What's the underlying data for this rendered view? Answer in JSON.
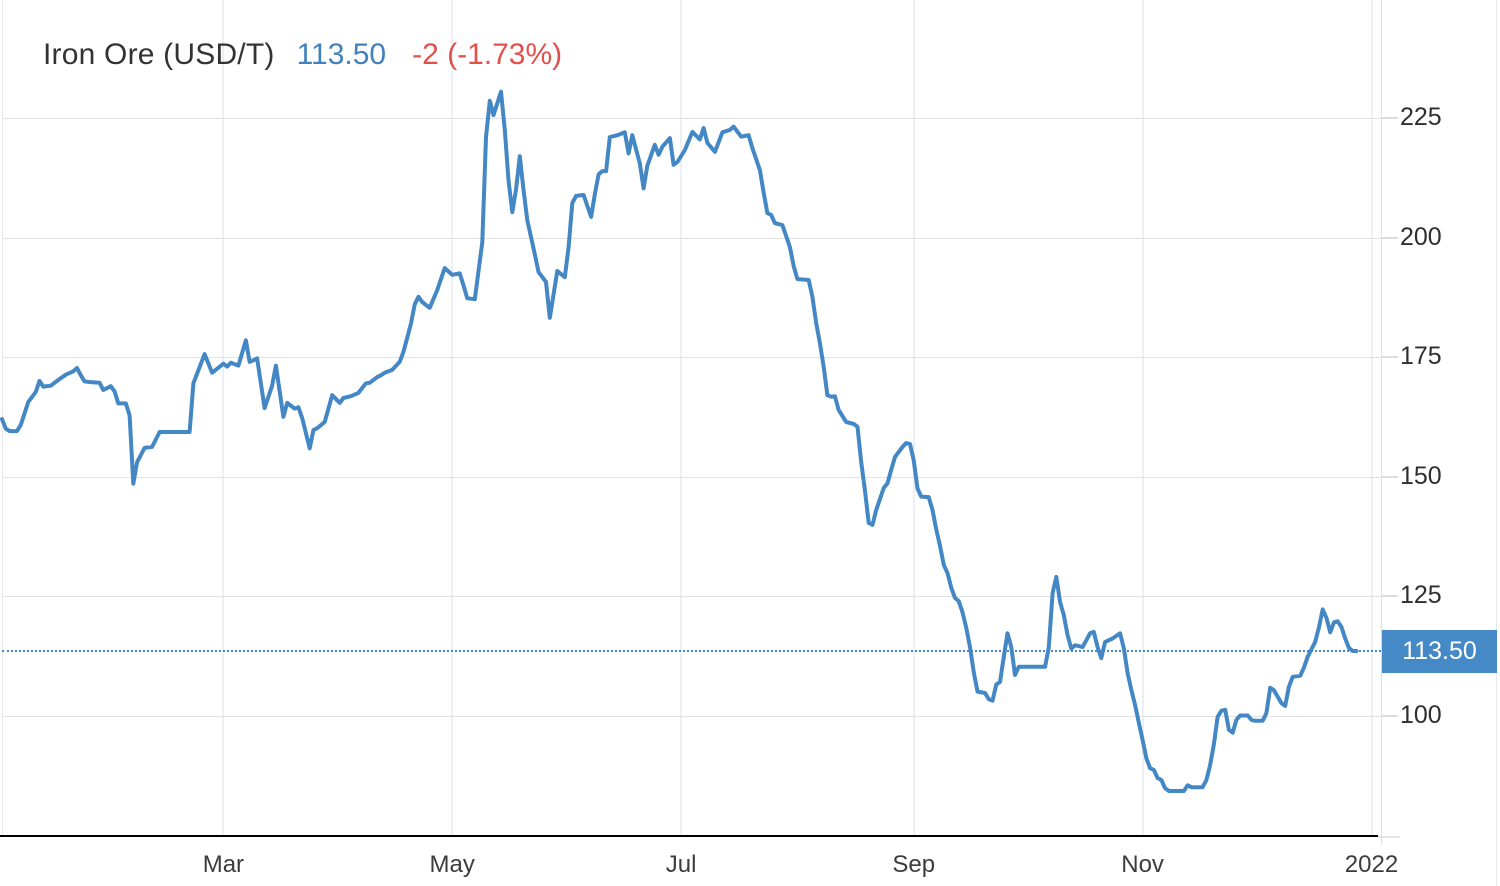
{
  "header": {
    "title": "Iron Ore (USD/T)",
    "last_price": "113.50",
    "change": "-2 (-1.73%)"
  },
  "colors": {
    "series_line": "#4387c5",
    "price_value_text": "#4181bd",
    "change_text": "#e2504c",
    "title_text": "#333333",
    "current_badge_bg": "#4589c6",
    "current_badge_text": "#ffffff",
    "axis_line": "#000000"
  },
  "chart_data": {
    "type": "line",
    "title": "Iron Ore (USD/T)",
    "x_unit": "days since 2021-01-01",
    "y_unit": "USD per tonne",
    "grid": true,
    "x_ticks": [
      {
        "label": "Mar",
        "day": 59
      },
      {
        "label": "May",
        "day": 120
      },
      {
        "label": "Jul",
        "day": 181
      },
      {
        "label": "Sep",
        "day": 243
      },
      {
        "label": "Nov",
        "day": 304
      },
      {
        "label": "2022",
        "day": 365
      }
    ],
    "y_ticks": [
      225,
      200,
      175,
      150,
      125,
      100
    ],
    "y_visible_range": [
      75,
      250
    ],
    "current_value": 113.5,
    "current_value_label": "113.50",
    "series": [
      {
        "name": "Iron Ore (USD/T)",
        "points": [
          [
            0,
            162
          ],
          [
            1,
            160
          ],
          [
            2,
            159.5
          ],
          [
            4,
            159.5
          ],
          [
            5,
            160.8
          ],
          [
            7,
            165.6
          ],
          [
            9,
            167.7
          ],
          [
            10,
            170
          ],
          [
            11,
            168.8
          ],
          [
            13,
            169
          ],
          [
            15,
            170.2
          ],
          [
            17,
            171.3
          ],
          [
            19,
            172
          ],
          [
            20,
            172.7
          ],
          [
            21,
            171.2
          ],
          [
            22,
            169.9
          ],
          [
            24,
            169.7
          ],
          [
            26,
            169.6
          ],
          [
            27,
            168.1
          ],
          [
            29,
            168.9
          ],
          [
            30,
            167.8
          ],
          [
            31,
            165.3
          ],
          [
            33,
            165.3
          ],
          [
            34,
            162.8
          ],
          [
            35,
            148.5
          ],
          [
            36,
            153
          ],
          [
            38,
            156
          ],
          [
            40,
            156.2
          ],
          [
            42,
            159.3
          ],
          [
            50,
            159.3
          ],
          [
            51,
            169.5
          ],
          [
            54,
            175.6
          ],
          [
            56,
            171.7
          ],
          [
            59,
            173.6
          ],
          [
            60,
            173
          ],
          [
            61,
            173.8
          ],
          [
            63,
            173.2
          ],
          [
            65,
            178.5
          ],
          [
            66,
            174
          ],
          [
            67,
            174.3
          ],
          [
            68,
            174.7
          ],
          [
            70,
            164.3
          ],
          [
            72,
            169
          ],
          [
            73,
            173.2
          ],
          [
            75,
            162.5
          ],
          [
            76,
            165.4
          ],
          [
            78,
            164.2
          ],
          [
            79,
            164.5
          ],
          [
            80,
            162.2
          ],
          [
            82,
            155.9
          ],
          [
            83,
            159.7
          ],
          [
            84,
            160.1
          ],
          [
            86,
            161.4
          ],
          [
            88,
            167
          ],
          [
            90,
            165.4
          ],
          [
            91,
            166.4
          ],
          [
            93,
            166.8
          ],
          [
            95,
            167.5
          ],
          [
            97,
            169.5
          ],
          [
            98,
            169.6
          ],
          [
            100,
            170.8
          ],
          [
            101,
            171.2
          ],
          [
            102,
            171.7
          ],
          [
            104,
            172.3
          ],
          [
            106,
            174
          ],
          [
            107,
            176.1
          ],
          [
            109,
            182
          ],
          [
            110,
            186
          ],
          [
            111,
            187.6
          ],
          [
            112,
            186.5
          ],
          [
            114,
            185.3
          ],
          [
            116,
            189
          ],
          [
            118,
            193.6
          ],
          [
            120,
            192.2
          ],
          [
            122,
            192.5
          ],
          [
            123,
            190
          ],
          [
            124,
            187.3
          ],
          [
            126,
            187.1
          ],
          [
            128,
            199
          ],
          [
            129,
            221
          ],
          [
            130,
            228.6
          ],
          [
            131,
            225.6
          ],
          [
            133,
            230.5
          ],
          [
            134,
            222.5
          ],
          [
            135,
            212
          ],
          [
            136,
            205.3
          ],
          [
            137,
            210
          ],
          [
            138,
            217
          ],
          [
            139,
            210
          ],
          [
            140,
            203.6
          ],
          [
            142,
            196.5
          ],
          [
            143,
            192.8
          ],
          [
            145,
            190.7
          ],
          [
            146,
            183.2
          ],
          [
            148,
            193
          ],
          [
            150,
            191.7
          ],
          [
            151,
            198
          ],
          [
            152,
            207.2
          ],
          [
            153,
            208.7
          ],
          [
            155,
            208.9
          ],
          [
            157,
            204.3
          ],
          [
            158,
            209
          ],
          [
            159,
            213.2
          ],
          [
            160,
            213.9
          ],
          [
            161,
            213.9
          ],
          [
            162,
            221
          ],
          [
            164,
            221.4
          ],
          [
            166,
            222
          ],
          [
            167,
            217.6
          ],
          [
            168,
            221.4
          ],
          [
            170,
            215.5
          ],
          [
            171,
            210.3
          ],
          [
            172,
            215
          ],
          [
            174,
            219.4
          ],
          [
            175,
            217.3
          ],
          [
            176,
            219
          ],
          [
            178,
            220.8
          ],
          [
            179,
            215.2
          ],
          [
            180,
            215.8
          ],
          [
            182,
            218.3
          ],
          [
            184,
            222.1
          ],
          [
            186,
            220.5
          ],
          [
            187,
            222.9
          ],
          [
            188,
            219.8
          ],
          [
            190,
            217.9
          ],
          [
            192,
            222
          ],
          [
            194,
            222.5
          ],
          [
            195,
            223.2
          ],
          [
            197,
            221.1
          ],
          [
            199,
            221.4
          ],
          [
            200,
            218.7
          ],
          [
            202,
            214.1
          ],
          [
            203,
            209.3
          ],
          [
            204,
            205.1
          ],
          [
            205,
            204.7
          ],
          [
            206,
            203
          ],
          [
            208,
            202.6
          ],
          [
            210,
            198
          ],
          [
            211,
            194
          ],
          [
            212,
            191.3
          ],
          [
            215,
            191.1
          ],
          [
            216,
            187.6
          ],
          [
            217,
            182.1
          ],
          [
            218,
            177.9
          ],
          [
            219,
            172.9
          ],
          [
            220,
            167
          ],
          [
            221,
            166.7
          ],
          [
            222,
            166.8
          ],
          [
            223,
            163.9
          ],
          [
            225,
            161.4
          ],
          [
            227,
            161
          ],
          [
            228,
            160.4
          ],
          [
            229,
            153
          ],
          [
            230,
            147
          ],
          [
            231,
            140.3
          ],
          [
            232,
            139.9
          ],
          [
            233,
            143
          ],
          [
            235,
            147.6
          ],
          [
            236,
            148.6
          ],
          [
            237,
            151.4
          ],
          [
            238,
            154.1
          ],
          [
            240,
            156.2
          ],
          [
            241,
            157
          ],
          [
            242,
            156.8
          ],
          [
            243,
            153.4
          ],
          [
            244,
            147.5
          ],
          [
            245,
            145.8
          ],
          [
            247,
            145.7
          ],
          [
            248,
            143
          ],
          [
            249,
            139
          ],
          [
            250,
            135.5
          ],
          [
            251,
            131.5
          ],
          [
            252,
            129.8
          ],
          [
            253,
            126.7
          ],
          [
            254,
            124.6
          ],
          [
            255,
            123.9
          ],
          [
            256,
            121.6
          ],
          [
            257,
            118.3
          ],
          [
            258,
            114.3
          ],
          [
            259,
            109
          ],
          [
            260,
            105
          ],
          [
            262,
            104.7
          ],
          [
            263,
            103.4
          ],
          [
            264,
            103.1
          ],
          [
            265,
            106.5
          ],
          [
            266,
            107
          ],
          [
            267,
            112.3
          ],
          [
            268,
            117.2
          ],
          [
            269,
            114.3
          ],
          [
            270,
            108.5
          ],
          [
            271,
            110.2
          ],
          [
            278,
            110.2
          ],
          [
            279,
            114.3
          ],
          [
            280,
            125.6
          ],
          [
            281,
            129
          ],
          [
            282,
            123.7
          ],
          [
            283,
            121
          ],
          [
            284,
            116.8
          ],
          [
            285,
            114
          ],
          [
            286,
            114.7
          ],
          [
            288,
            114.3
          ],
          [
            290,
            117.2
          ],
          [
            291,
            117.5
          ],
          [
            292,
            114.3
          ],
          [
            293,
            112
          ],
          [
            294,
            115.4
          ],
          [
            296,
            116.1
          ],
          [
            298,
            117.2
          ],
          [
            299,
            114.1
          ],
          [
            300,
            108.9
          ],
          [
            301,
            105.3
          ],
          [
            302,
            102.2
          ],
          [
            303,
            98.4
          ],
          [
            304,
            94.9
          ],
          [
            305,
            91
          ],
          [
            306,
            89
          ],
          [
            307,
            88.6
          ],
          [
            308,
            86.9
          ],
          [
            309,
            86.5
          ],
          [
            310,
            84.8
          ],
          [
            311,
            84.2
          ],
          [
            315,
            84.2
          ],
          [
            316,
            85.4
          ],
          [
            317,
            85
          ],
          [
            320,
            85
          ],
          [
            321,
            86.5
          ],
          [
            322,
            89.6
          ],
          [
            323,
            94
          ],
          [
            324,
            99.7
          ],
          [
            325,
            101
          ],
          [
            326,
            101.2
          ],
          [
            327,
            97
          ],
          [
            328,
            96.4
          ],
          [
            329,
            99.1
          ],
          [
            330,
            100
          ],
          [
            332,
            100
          ],
          [
            333,
            99.1
          ],
          [
            334,
            98.9
          ],
          [
            336,
            98.9
          ],
          [
            337,
            100.5
          ],
          [
            338,
            105.8
          ],
          [
            339,
            105.3
          ],
          [
            341,
            102.6
          ],
          [
            342,
            102
          ],
          [
            343,
            106
          ],
          [
            344,
            108.1
          ],
          [
            346,
            108.3
          ],
          [
            347,
            110
          ],
          [
            348,
            112.3
          ],
          [
            350,
            115.4
          ],
          [
            351,
            118.5
          ],
          [
            352,
            122.2
          ],
          [
            353,
            120.4
          ],
          [
            354,
            117.4
          ],
          [
            355,
            119.5
          ],
          [
            356,
            119.7
          ],
          [
            357,
            118.5
          ],
          [
            358,
            116.1
          ],
          [
            359,
            114.1
          ],
          [
            360,
            113.5
          ],
          [
            361,
            113.5
          ]
        ]
      }
    ]
  }
}
